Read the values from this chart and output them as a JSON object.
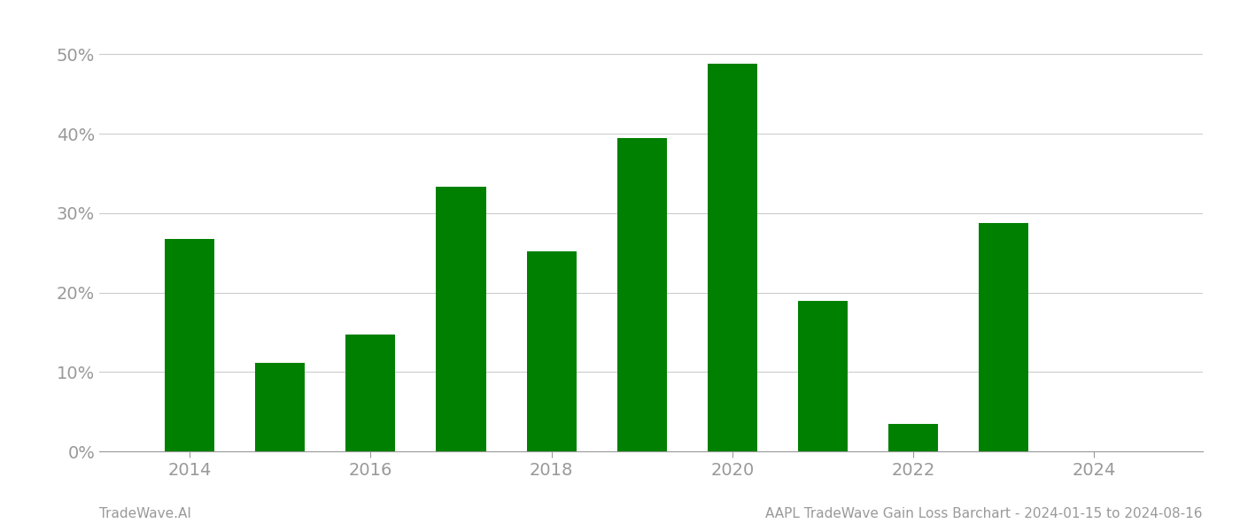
{
  "years": [
    2014,
    2015,
    2016,
    2017,
    2018,
    2019,
    2020,
    2021,
    2022,
    2023
  ],
  "values": [
    0.267,
    0.112,
    0.147,
    0.333,
    0.252,
    0.395,
    0.488,
    0.19,
    0.035,
    0.288
  ],
  "bar_color": "#008000",
  "background_color": "#ffffff",
  "grid_color": "#cccccc",
  "tick_color": "#999999",
  "bottom_left_text": "TradeWave.AI",
  "bottom_right_text": "AAPL TradeWave Gain Loss Barchart - 2024-01-15 to 2024-08-16",
  "ylim": [
    0,
    0.535
  ],
  "yticks": [
    0.0,
    0.1,
    0.2,
    0.3,
    0.4,
    0.5
  ],
  "xtick_labels": [
    "2014",
    "2016",
    "2018",
    "2020",
    "2022",
    "2024"
  ],
  "xtick_positions": [
    2014,
    2016,
    2018,
    2020,
    2022,
    2024
  ],
  "xlim": [
    2013.0,
    2025.2
  ],
  "bar_width": 0.55,
  "fontsize_ticks": 14,
  "fontsize_footer": 11
}
